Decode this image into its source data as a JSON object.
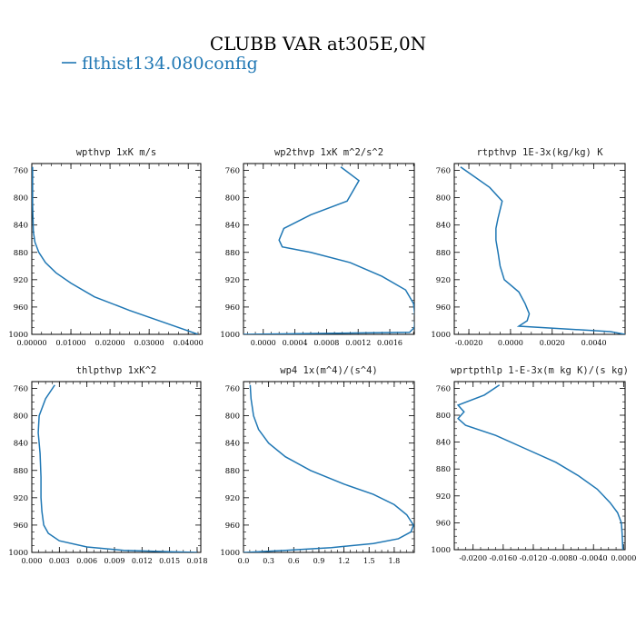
{
  "figure": {
    "title": "CLUBB VAR at305E,0N",
    "legend": {
      "label": "flthist134.080config",
      "color": "#1f77b4"
    }
  },
  "chart_data": [
    {
      "type": "line",
      "title": "wpthvp  1xK m/s",
      "ylim": [
        1000,
        750
      ],
      "y_ticks": [
        "760",
        "800",
        "840",
        "880",
        "920",
        "960",
        "1000"
      ],
      "x_ticks": [
        "0.00000",
        "0.01000",
        "0.02000",
        "0.03000",
        "0.04000"
      ],
      "xlim": [
        0,
        0.0432
      ],
      "series": [
        {
          "x": [
            0.0002,
            0.0002,
            0.0002,
            0.0002,
            0.0003,
            0.0004,
            0.0008,
            0.0018,
            0.0035,
            0.0062,
            0.01,
            0.016,
            0.025,
            0.035,
            0.0425
          ],
          "y": [
            755,
            770,
            790,
            810,
            830,
            850,
            865,
            880,
            895,
            910,
            925,
            945,
            965,
            985,
            1000
          ]
        }
      ]
    },
    {
      "type": "line",
      "title": "wp2thvp  1xK m^2/s^2",
      "ylim": [
        1000,
        750
      ],
      "y_ticks": [
        "760",
        "800",
        "840",
        "880",
        "920",
        "960",
        "1000"
      ],
      "x_ticks": [
        "0.0000",
        "0.0004",
        "0.0008",
        "0.0012",
        "0.0016"
      ],
      "xlim": [
        -0.00025,
        0.00191
      ],
      "series": [
        {
          "x": [
            0.00098,
            0.00121,
            0.00106,
            0.0006,
            0.00026,
            0.0002,
            0.00024,
            0.0006,
            0.0011,
            0.0015,
            0.0018,
            0.0019,
            0.00192,
            0.00191,
            0.00185,
            -0.00025
          ],
          "y": [
            755,
            775,
            805,
            825,
            845,
            862,
            872,
            880,
            895,
            915,
            935,
            955,
            975,
            990,
            997,
            1000
          ]
        }
      ]
    },
    {
      "type": "line",
      "title": "rtpthvp  1E-3x(kg/kg) K",
      "ylim": [
        1000,
        750
      ],
      "y_ticks": [
        "760",
        "800",
        "840",
        "880",
        "920",
        "960",
        "1000"
      ],
      "x_ticks": [
        "-0.0020",
        "0.0000",
        "0.0020",
        "0.0040"
      ],
      "xlim": [
        -0.0027,
        0.0055
      ],
      "series": [
        {
          "x": [
            -0.0024,
            -0.0017,
            -0.001,
            -0.0004,
            -0.0006,
            -0.0007,
            -0.0007,
            -0.0006,
            -0.0005,
            -0.0003,
            0.0004,
            0.0007,
            0.0009,
            0.0008,
            0.0004,
            0.0048,
            0.0055
          ],
          "y": [
            755,
            770,
            785,
            805,
            830,
            845,
            862,
            880,
            900,
            920,
            938,
            955,
            970,
            980,
            988,
            996,
            1000
          ]
        }
      ]
    },
    {
      "type": "line",
      "title": "thlpthvp  1xK^2",
      "ylim": [
        1000,
        750
      ],
      "y_ticks": [
        "760",
        "800",
        "840",
        "880",
        "920",
        "960",
        "1000"
      ],
      "x_ticks": [
        "0.000",
        "0.003",
        "0.006",
        "0.009",
        "0.012",
        "0.015",
        "0.018"
      ],
      "xlim": [
        0,
        0.0184
      ],
      "series": [
        {
          "x": [
            0.0025,
            0.0015,
            0.0008,
            0.0007,
            0.0009,
            0.001,
            0.001,
            0.0011,
            0.0013,
            0.0018,
            0.003,
            0.006,
            0.01,
            0.015,
            0.018
          ],
          "y": [
            755,
            775,
            800,
            825,
            855,
            890,
            920,
            940,
            960,
            972,
            983,
            992,
            997,
            999,
            1000
          ]
        }
      ]
    },
    {
      "type": "line",
      "title": "wp4  1x(m^4)/(s^4)",
      "ylim": [
        1000,
        750
      ],
      "y_ticks": [
        "760",
        "800",
        "840",
        "880",
        "920",
        "960",
        "1000"
      ],
      "x_ticks": [
        "0.0",
        "0.3",
        "0.6",
        "0.9",
        "1.2",
        "1.5",
        "1.8"
      ],
      "xlim": [
        0,
        2.04
      ],
      "series": [
        {
          "x": [
            0.08,
            0.09,
            0.12,
            0.18,
            0.3,
            0.5,
            0.8,
            1.2,
            1.55,
            1.8,
            1.95,
            2.03,
            2.0,
            1.85,
            1.55,
            1.05,
            0.5,
            0.18,
            0.03,
            0.0
          ],
          "y": [
            755,
            775,
            800,
            820,
            840,
            860,
            880,
            900,
            915,
            930,
            945,
            960,
            970,
            980,
            987,
            993,
            997,
            999,
            1000,
            1000
          ]
        }
      ]
    },
    {
      "type": "line",
      "title": "wprtpthlp  1-E-3x(m kg K)/(s kg)",
      "ylim": [
        1000,
        750
      ],
      "y_ticks": [
        "760",
        "800",
        "840",
        "880",
        "920",
        "960",
        "1000"
      ],
      "x_ticks": [
        "-0.0200",
        "-0.0160",
        "-0.0120",
        "-0.0080",
        "-0.0040",
        "0.0000"
      ],
      "xlim": [
        -0.0225,
        0.0002
      ],
      "series": [
        {
          "x": [
            -0.0165,
            -0.0185,
            -0.022,
            -0.0212,
            -0.022,
            -0.021,
            -0.017,
            -0.013,
            -0.009,
            -0.006,
            -0.0035,
            -0.0018,
            -0.0008,
            -0.0003,
            -0.0002,
            -0.0001
          ],
          "y": [
            755,
            770,
            785,
            795,
            805,
            815,
            830,
            850,
            870,
            890,
            910,
            930,
            945,
            960,
            975,
            1000
          ]
        }
      ]
    }
  ]
}
